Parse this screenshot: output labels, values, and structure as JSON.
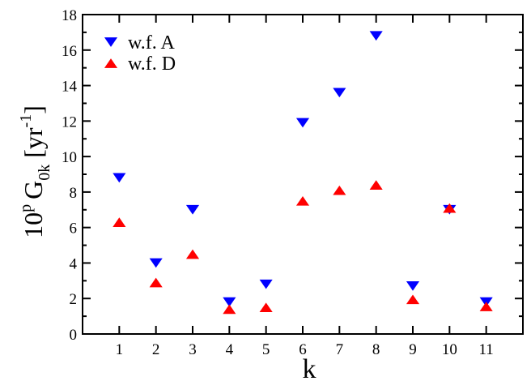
{
  "chart_data": {
    "type": "scatter",
    "x": [
      1,
      2,
      3,
      4,
      5,
      6,
      7,
      8,
      9,
      10,
      11
    ],
    "xlim": [
      0,
      12
    ],
    "ylim": [
      0,
      18
    ],
    "xticks": [
      "1",
      "2",
      "3",
      "4",
      "5",
      "6",
      "7",
      "8",
      "9",
      "10",
      "11"
    ],
    "yticks": [
      "0",
      "2",
      "4",
      "6",
      "8",
      "10",
      "12",
      "14",
      "16",
      "18"
    ],
    "xlabel": "k",
    "ylabel": {
      "base": "10",
      "exp": "p",
      "symbol": "G",
      "sub": "0k",
      "unit_open": "[yr",
      "unit_exp": "-1",
      "unit_close": "]"
    },
    "legend_position": "top-left",
    "grid": false,
    "series": [
      {
        "name": "w.f. A",
        "marker": "triangle-down",
        "color": "#0000ff",
        "values": [
          8.8,
          4.0,
          7.0,
          1.8,
          2.8,
          11.9,
          13.6,
          16.8,
          2.7,
          7.0,
          1.8
        ]
      },
      {
        "name": "w.f. D",
        "marker": "triangle-up",
        "color": "#ff0000",
        "values": [
          6.3,
          2.9,
          4.5,
          1.4,
          1.5,
          7.5,
          8.1,
          8.4,
          1.95,
          7.1,
          1.55
        ]
      }
    ]
  }
}
